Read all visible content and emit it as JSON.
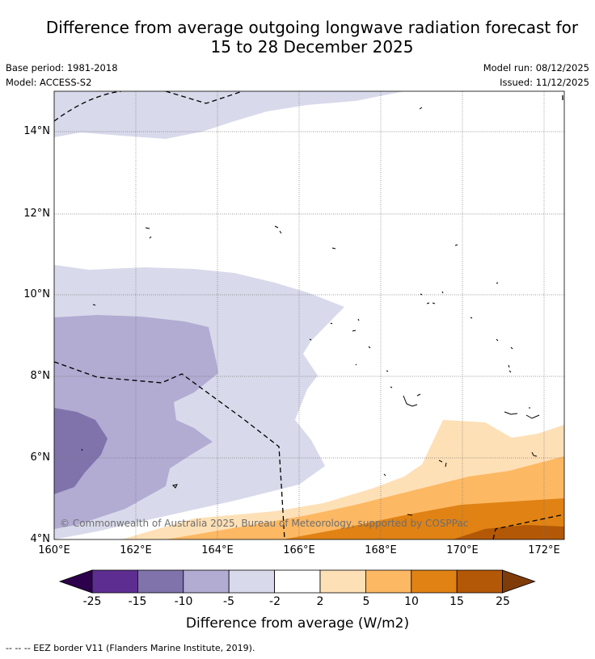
{
  "title_line1": "Difference from average outgoing longwave radiation forecast for",
  "title_line2": "15 to 28 December 2025",
  "base_period": "Base period: 1981-2018",
  "model": "Model: ACCESS-S2",
  "model_run": "Model run: 08/12/2025",
  "issued": "Issued: 11/12/2025",
  "lat_ticks": [
    "14°N",
    "12°N",
    "10°N",
    "8°N",
    "6°N",
    "4°N"
  ],
  "lon_ticks": [
    "160°E",
    "162°E",
    "164°E",
    "166°E",
    "168°E",
    "170°E",
    "172°E"
  ],
  "copyright": "© Commonwealth of Australia 2025, Bureau of Meteorology, supported by COSPPac",
  "colorbar": {
    "ticks": [
      "-25",
      "-15",
      "-10",
      "-5",
      "-2",
      "2",
      "5",
      "10",
      "15",
      "25"
    ],
    "label": "Difference from average (W/m2)",
    "colors": [
      "#2d004b",
      "#5e2d91",
      "#8073ac",
      "#b2abd2",
      "#d8daeb",
      "#ffffff",
      "#fee0b6",
      "#fdb863",
      "#e08214",
      "#b35806",
      "#7f3b08"
    ]
  },
  "footnote": "--  --  -- EEZ border V11 (Flanders Marine Institute, 2019)."
}
